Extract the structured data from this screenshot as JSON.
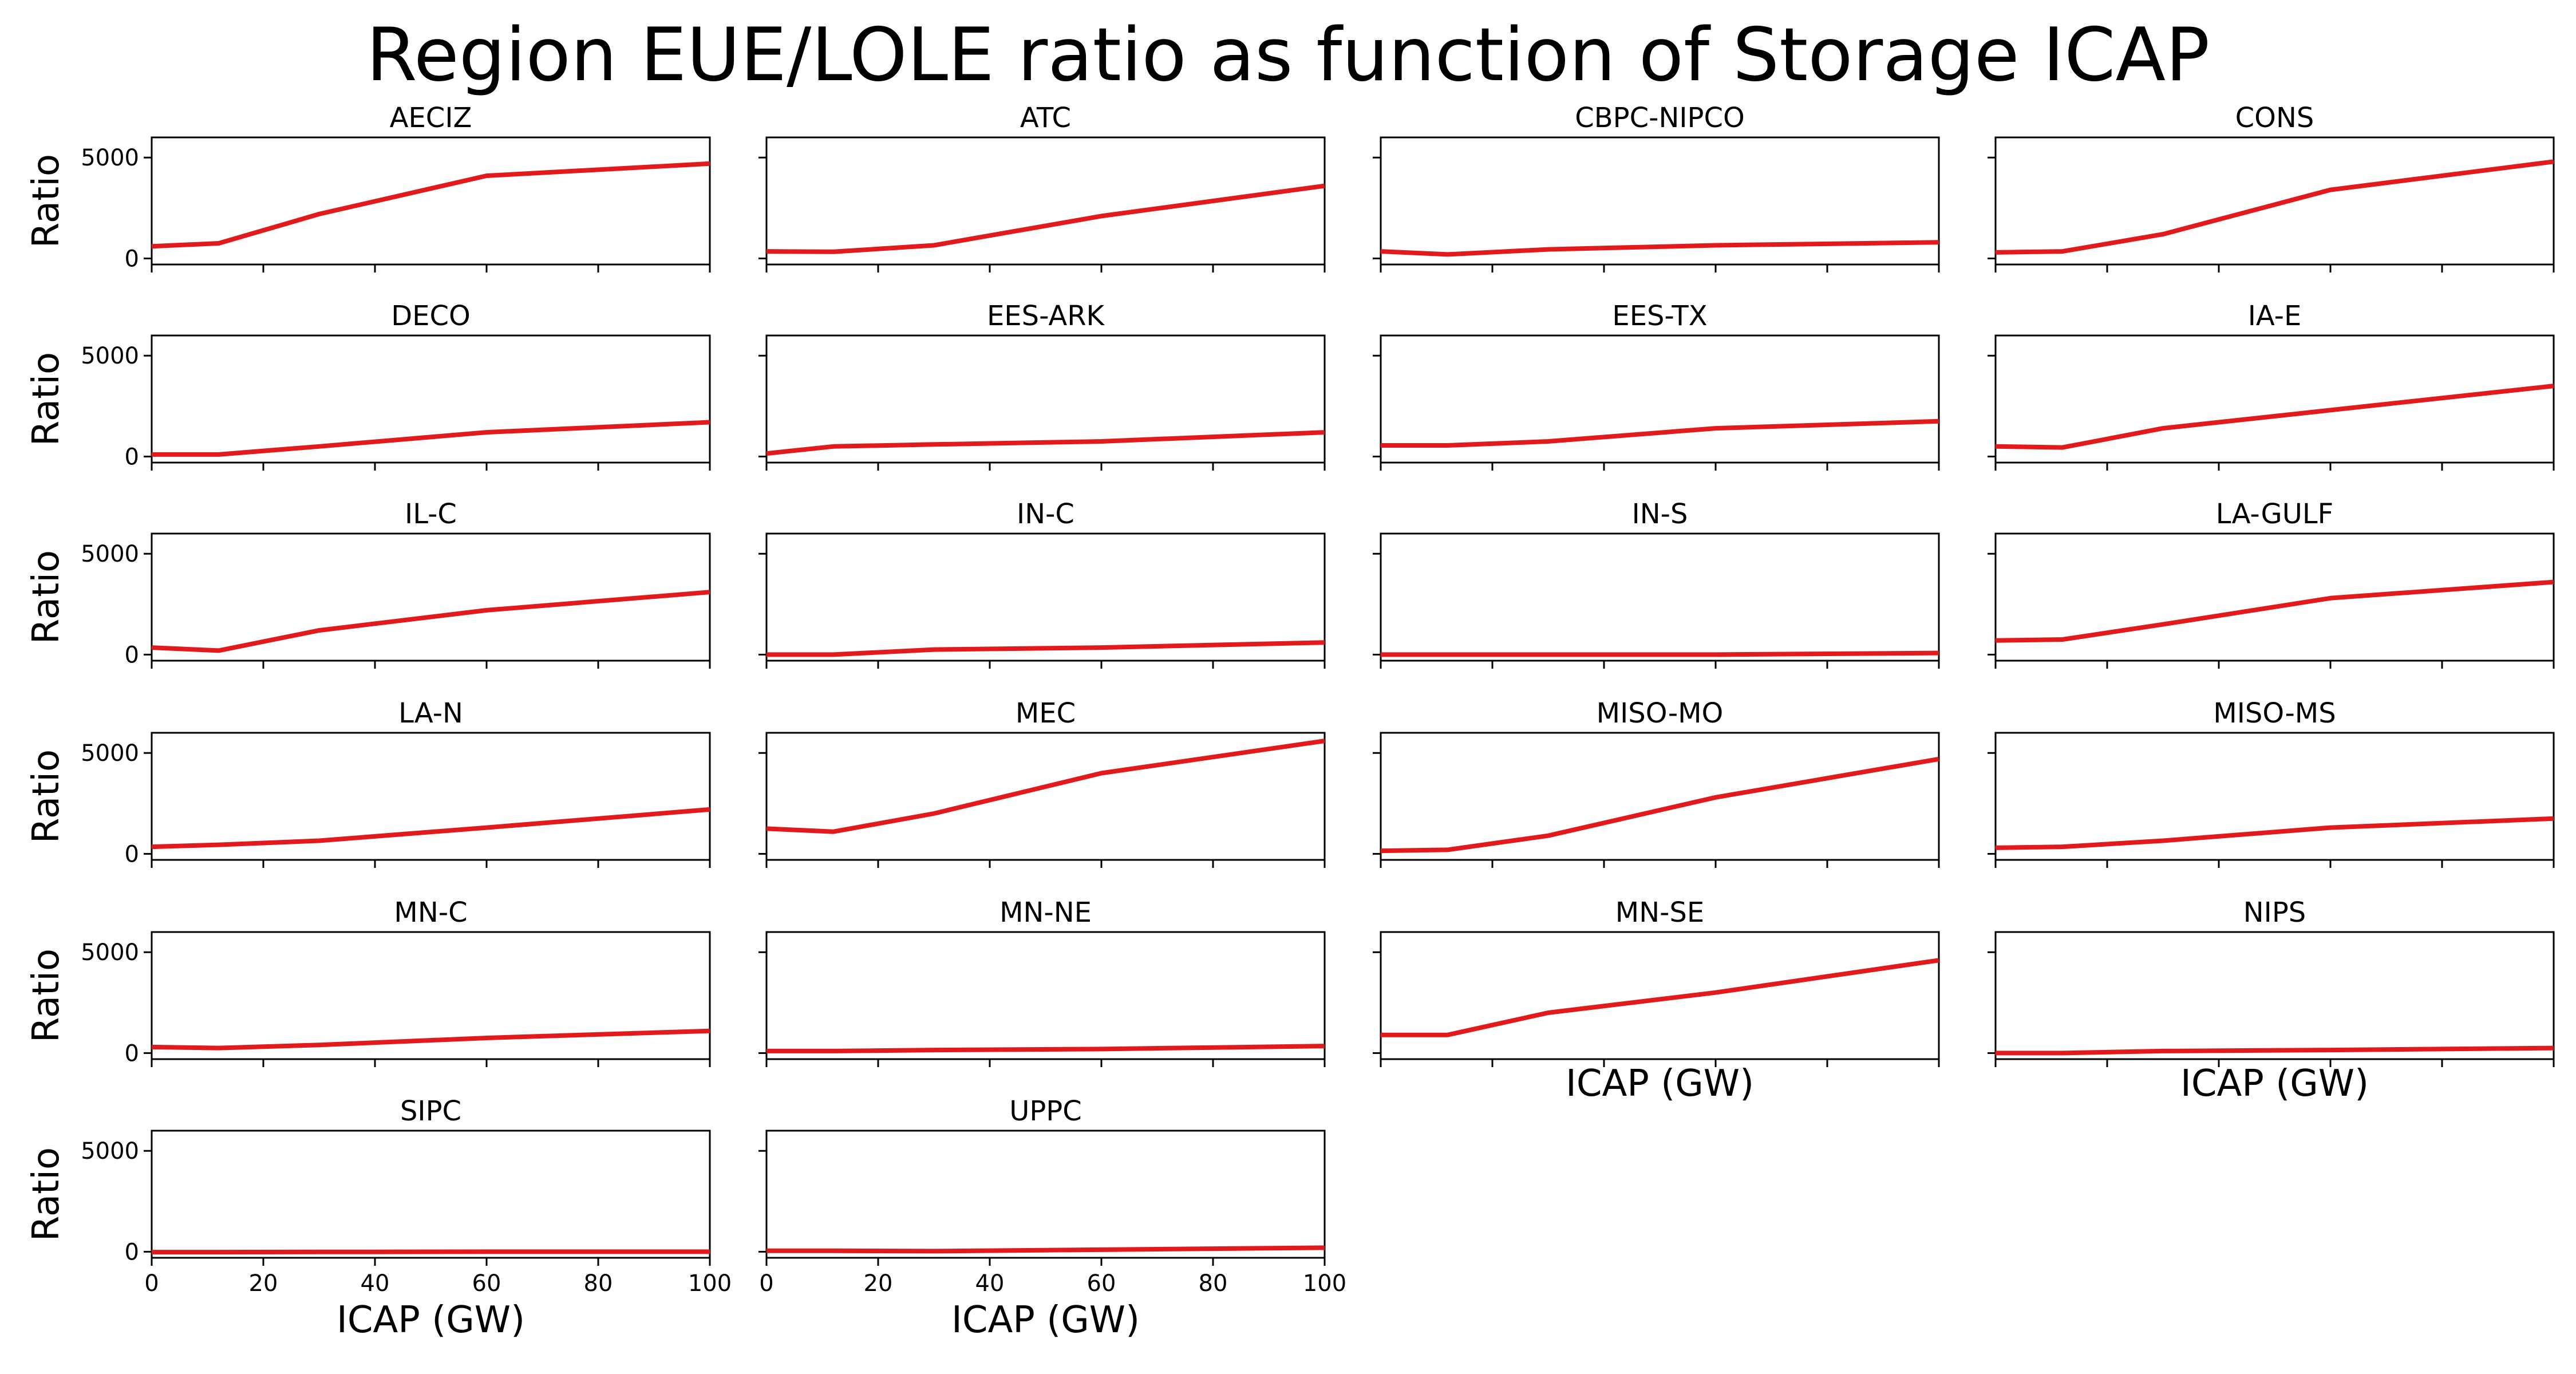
{
  "chart_data": {
    "type": "line",
    "title": "Region EUE/LOLE ratio as function of Storage ICAP",
    "xlabel": "ICAP (GW)",
    "ylabel": "Ratio",
    "xlim": [
      0,
      100
    ],
    "ylim": [
      -300,
      6000
    ],
    "xticks": [
      0,
      20,
      40,
      60,
      80,
      100
    ],
    "yticks": [
      0,
      5000
    ],
    "grid": false,
    "line_color": "#e31a1c",
    "x": [
      0,
      12,
      30,
      60,
      100
    ],
    "panels": [
      {
        "name": "AECIZ",
        "values": [
          600,
          750,
          2200,
          4100,
          4700
        ]
      },
      {
        "name": "ATC",
        "values": [
          350,
          330,
          650,
          2100,
          3600
        ]
      },
      {
        "name": "CBPC-NIPCO",
        "values": [
          350,
          200,
          450,
          650,
          800
        ]
      },
      {
        "name": "CONS",
        "values": [
          300,
          350,
          1200,
          3400,
          4800
        ]
      },
      {
        "name": "DECO",
        "values": [
          100,
          100,
          500,
          1200,
          1700
        ]
      },
      {
        "name": "EES-ARK",
        "values": [
          150,
          500,
          600,
          750,
          1200
        ]
      },
      {
        "name": "EES-TX",
        "values": [
          550,
          550,
          750,
          1400,
          1750
        ]
      },
      {
        "name": "IA-E",
        "values": [
          500,
          450,
          1400,
          2300,
          3500
        ]
      },
      {
        "name": "IL-C",
        "values": [
          350,
          200,
          1200,
          2200,
          3100
        ]
      },
      {
        "name": "IN-C",
        "values": [
          0,
          0,
          250,
          350,
          600
        ]
      },
      {
        "name": "IN-S",
        "values": [
          0,
          0,
          0,
          0,
          80
        ]
      },
      {
        "name": "LA-GULF",
        "values": [
          700,
          750,
          1500,
          2800,
          3600
        ]
      },
      {
        "name": "LA-N",
        "values": [
          350,
          450,
          650,
          1300,
          2200
        ]
      },
      {
        "name": "MEC",
        "values": [
          1250,
          1100,
          2000,
          4000,
          5600
        ]
      },
      {
        "name": "MISO-MO",
        "values": [
          150,
          200,
          900,
          2800,
          4700
        ]
      },
      {
        "name": "MISO-MS",
        "values": [
          300,
          350,
          650,
          1300,
          1750
        ]
      },
      {
        "name": "MN-C",
        "values": [
          300,
          250,
          400,
          750,
          1100
        ]
      },
      {
        "name": "MN-NE",
        "values": [
          100,
          100,
          150,
          200,
          350
        ]
      },
      {
        "name": "MN-SE",
        "values": [
          900,
          900,
          2000,
          3000,
          4600
        ]
      },
      {
        "name": "NIPS",
        "values": [
          0,
          0,
          100,
          150,
          250
        ]
      },
      {
        "name": "SIPC",
        "values": [
          -20,
          -20,
          -10,
          0,
          0
        ]
      },
      {
        "name": "UPPC",
        "values": [
          50,
          50,
          30,
          100,
          200
        ]
      }
    ]
  }
}
